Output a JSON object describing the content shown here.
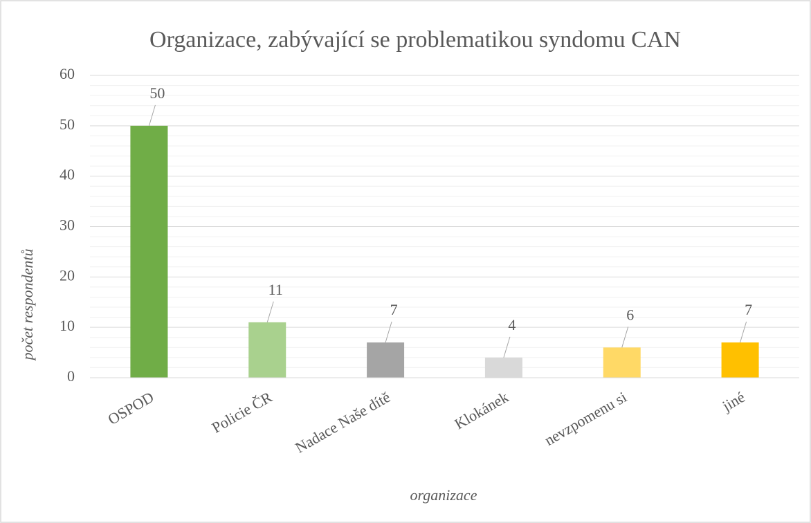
{
  "chart_data": {
    "type": "bar",
    "title": "Organizace, zabývající se problematikou syndomu CAN",
    "x_label": "organizace",
    "y_label": "počet respondentů",
    "categories": [
      "OSPOD",
      "Policie ČR",
      "Nadace Naše dítě",
      "Klokánek",
      "nevzpomenu si",
      "jiné"
    ],
    "values": [
      50,
      11,
      7,
      4,
      6,
      7
    ],
    "colors": [
      "#70ad47",
      "#a9d18e",
      "#a5a5a5",
      "#d9d9d9",
      "#ffd966",
      "#ffc000"
    ],
    "ylim": [
      0,
      60
    ],
    "yticks": [
      0,
      10,
      20,
      30,
      40,
      50,
      60
    ],
    "minor_yticks": [
      2,
      4,
      6,
      8,
      12,
      14,
      16,
      18,
      22,
      24,
      26,
      28,
      32,
      34,
      36,
      38,
      42,
      44,
      46,
      48,
      52,
      54,
      56,
      58
    ],
    "grid": true
  }
}
